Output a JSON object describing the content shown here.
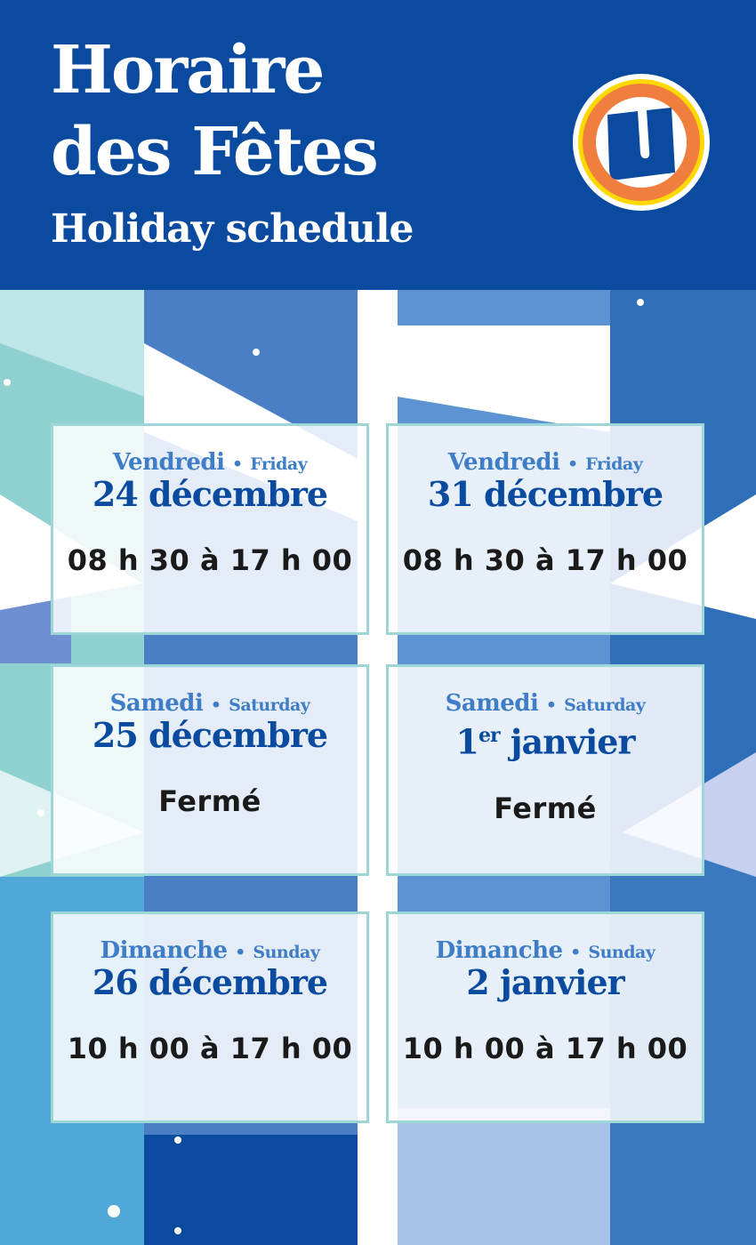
{
  "header": {
    "title_line1": "Horaire",
    "title_line2": "des Fêtes",
    "subtitle": "Holiday schedule",
    "logo_letter": "U"
  },
  "colors": {
    "brand_blue": "#0a4ba0",
    "day_blue": "#3f7dc6",
    "card_border": "#9dd6d6",
    "logo_orange": "#f07e3e",
    "logo_yellow": "#ffd800"
  },
  "schedule": [
    {
      "day_fr": "Vendredi",
      "day_en": "Friday",
      "date": "24 décembre",
      "hours": "08 h 30 à 17 h 00"
    },
    {
      "day_fr": "Vendredi",
      "day_en": "Friday",
      "date": "31 décembre",
      "hours": "08 h 30 à 17 h 00"
    },
    {
      "day_fr": "Samedi",
      "day_en": "Saturday",
      "date": "25 décembre",
      "hours": "Fermé"
    },
    {
      "day_fr": "Samedi",
      "day_en": "Saturday",
      "date_num": "1",
      "date_sup": "er",
      "date_rest": " janvier",
      "hours": "Fermé"
    },
    {
      "day_fr": "Dimanche",
      "day_en": "Sunday",
      "date": "26 décembre",
      "hours": "10 h 00 à 17 h 00"
    },
    {
      "day_fr": "Dimanche",
      "day_en": "Sunday",
      "date": "2 janvier",
      "hours": "10 h 00 à 17 h 00"
    }
  ],
  "separator": "•"
}
